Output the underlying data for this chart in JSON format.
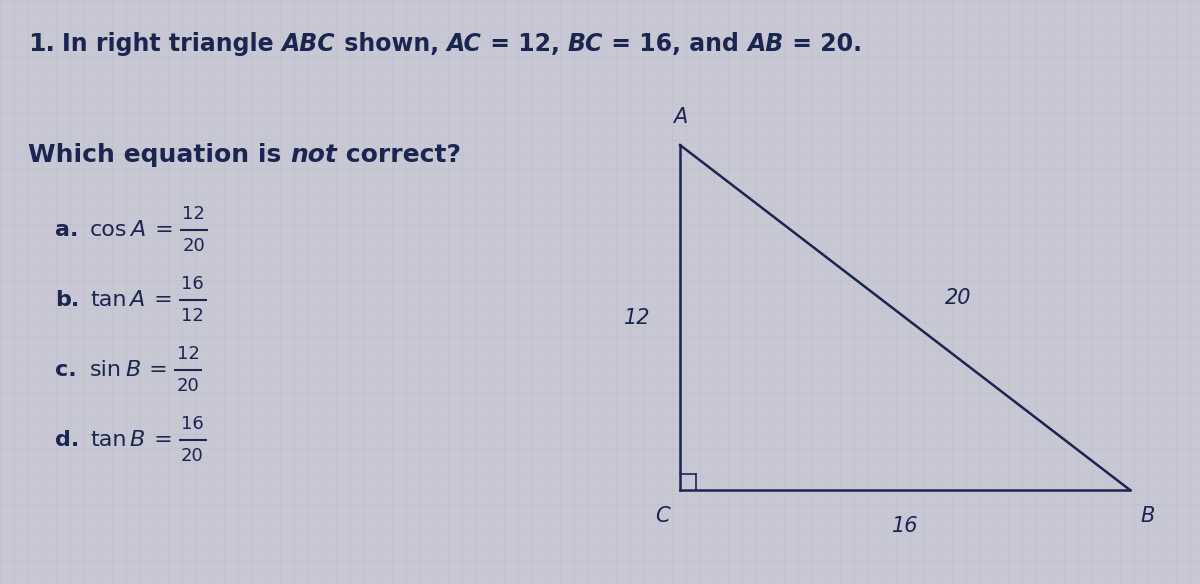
{
  "bg_color": "#c8c8d4",
  "grid_color": "#b8b8c8",
  "text_color": "#1a2550",
  "title_number": "1.",
  "title_text_parts": [
    {
      "text": "In right triangle ",
      "style": "normal"
    },
    {
      "text": "ABC",
      "style": "italic"
    },
    {
      "text": " shown, ",
      "style": "normal"
    },
    {
      "text": "AC",
      "style": "italic"
    },
    {
      "text": " = 12, ",
      "style": "normal"
    },
    {
      "text": "BC",
      "style": "italic"
    },
    {
      "text": " = 16, and ",
      "style": "normal"
    },
    {
      "text": "AB",
      "style": "italic"
    },
    {
      "text": " = 20.",
      "style": "normal"
    }
  ],
  "options": [
    {
      "label": "a.",
      "trig": "cos A",
      "eq": " = ",
      "num": "12",
      "den": "20"
    },
    {
      "label": "b.",
      "trig": "tan A",
      "eq": " = ",
      "num": "16",
      "den": "12"
    },
    {
      "label": "c.",
      "trig": "sin B",
      "eq": " = ",
      "num": "12",
      "den": "20"
    },
    {
      "label": "d.",
      "trig": "tan B",
      "eq": " = ",
      "num": "16",
      "den": "20"
    }
  ],
  "triangle": {
    "label_A": "A",
    "label_C": "C",
    "label_B": "B",
    "side_AC": "12",
    "side_CB": "16",
    "side_AB": "20"
  }
}
